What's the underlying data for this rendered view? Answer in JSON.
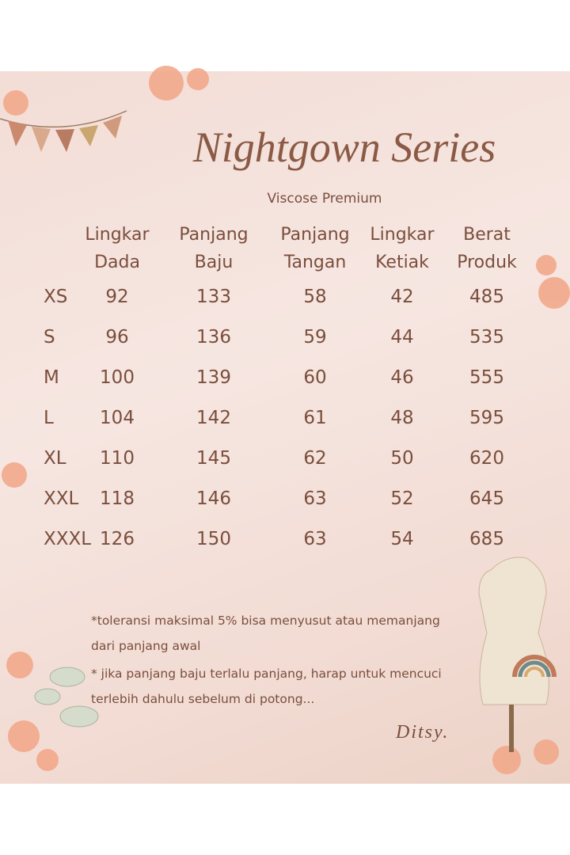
{
  "title": "Nightgown Series",
  "subtitle": "Viscose Premium",
  "table": {
    "headers": [
      [
        "Lingkar",
        "Dada"
      ],
      [
        "Panjang",
        "Baju"
      ],
      [
        "Panjang",
        "Tangan"
      ],
      [
        "Lingkar",
        "Ketiak"
      ],
      [
        "Berat",
        "Produk"
      ]
    ],
    "rows": [
      [
        "XS",
        92,
        133,
        58,
        42,
        485
      ],
      [
        "S",
        96,
        136,
        59,
        44,
        535
      ],
      [
        "M",
        100,
        139,
        60,
        46,
        555
      ],
      [
        "L",
        104,
        142,
        61,
        48,
        595
      ],
      [
        "XL",
        110,
        145,
        62,
        50,
        620
      ],
      [
        "XXL",
        118,
        146,
        63,
        52,
        645
      ],
      [
        "XXXL",
        126,
        150,
        63,
        54,
        685
      ]
    ]
  },
  "notes": [
    [
      "*toleransi  maksimal 5% bisa menyusut atau memanjang",
      "dari panjang awal"
    ],
    [
      "* jika panjang baju terlalu panjang, harap  untuk mencuci",
      "terlebih dahulu sebelum di potong..."
    ]
  ],
  "signature": "Ditsy."
}
